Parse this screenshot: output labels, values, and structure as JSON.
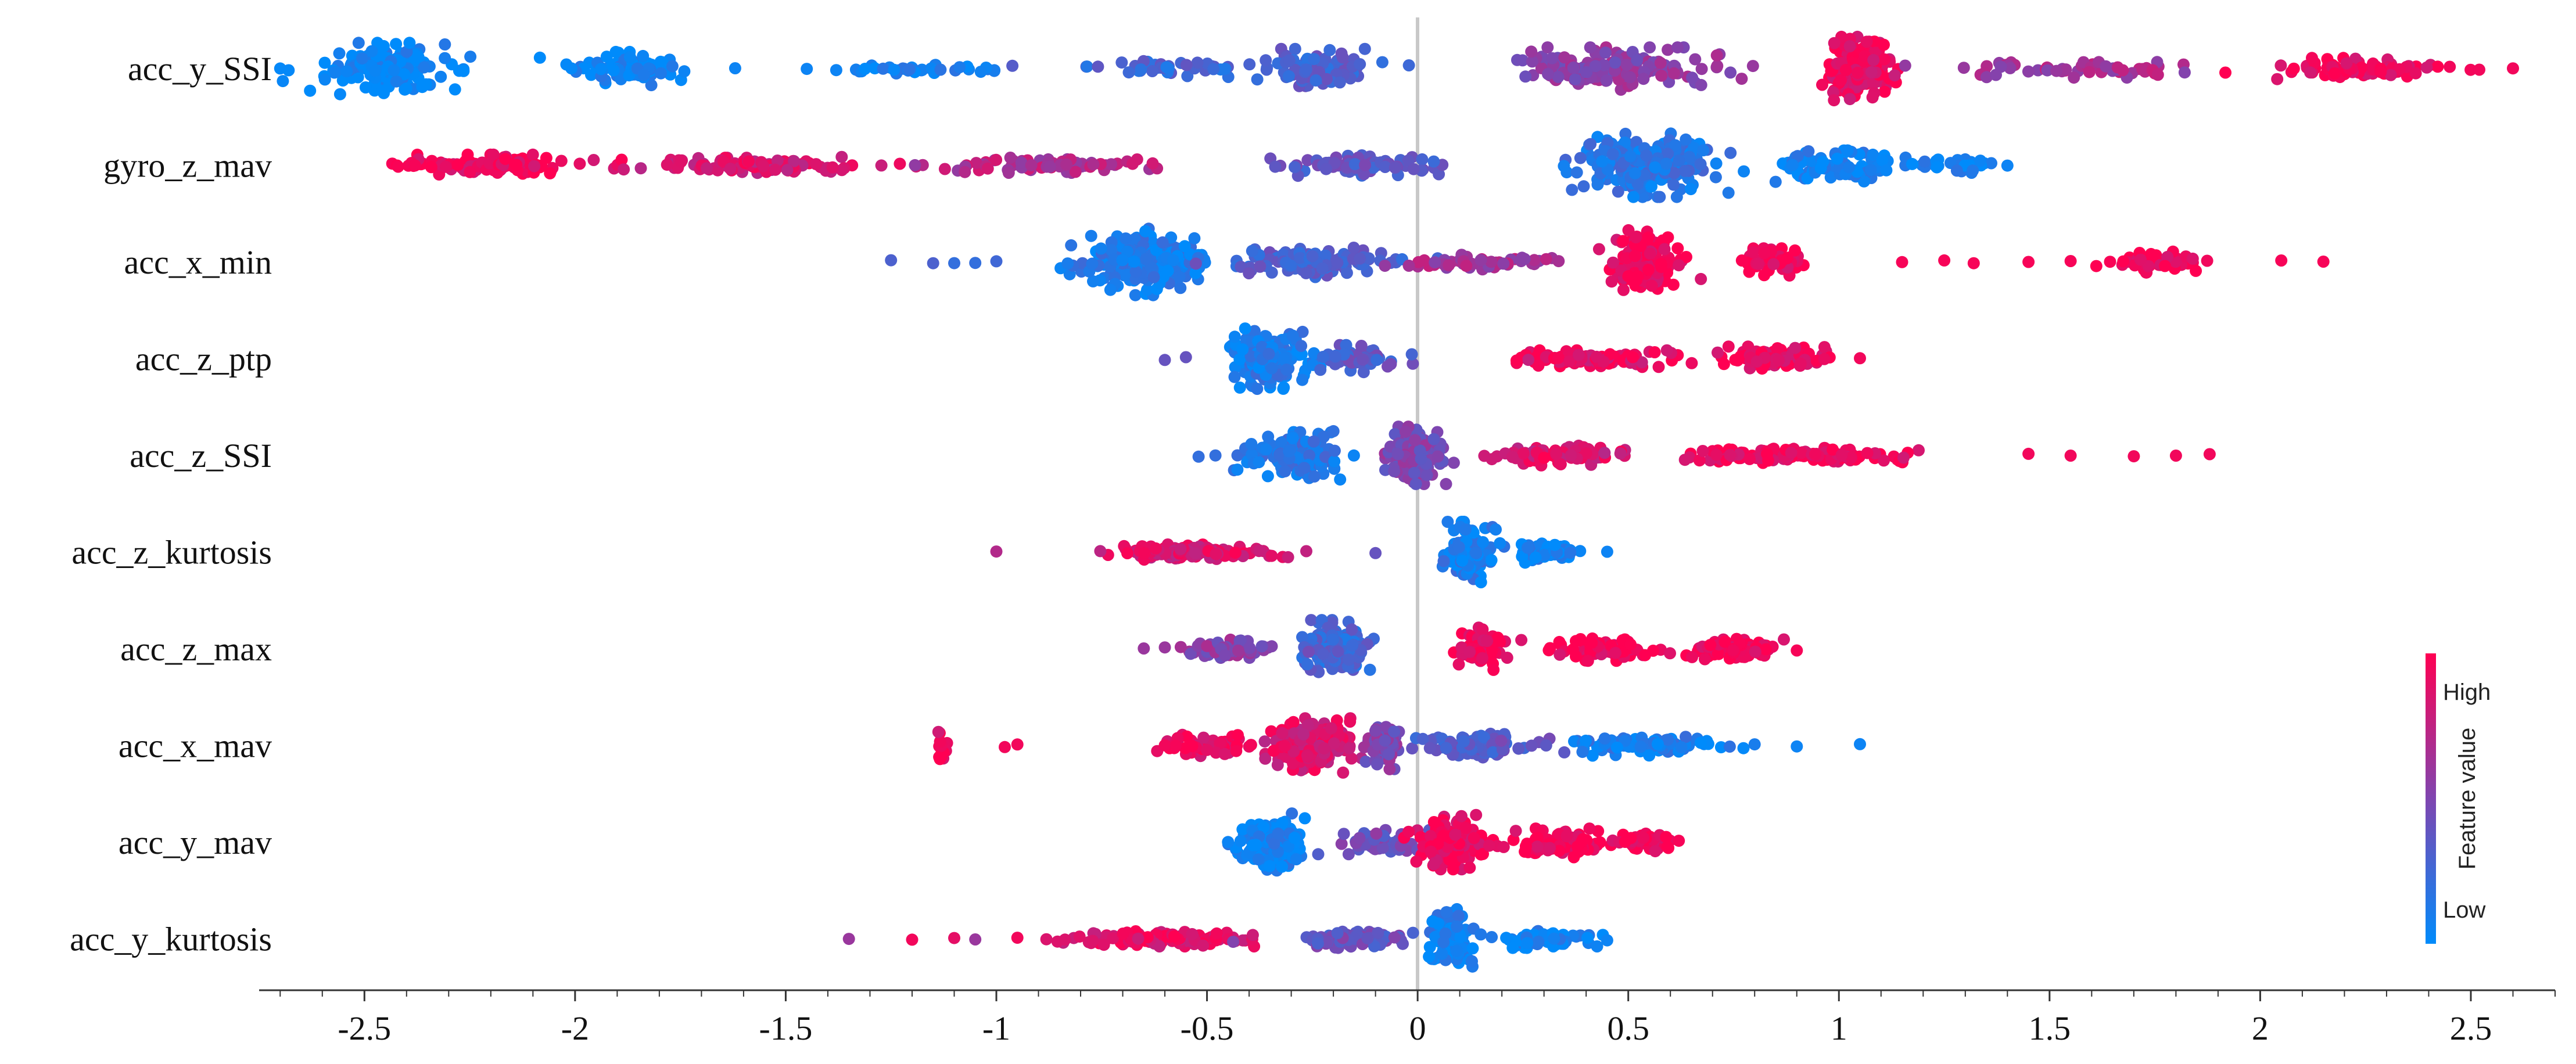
{
  "chart_data": {
    "type": "scatter",
    "subtype": "shap-beeswarm",
    "title": "",
    "xlabel": "",
    "ylabel": "",
    "xlim": [
      -2.75,
      2.7
    ],
    "x_ticks": [
      -2.5,
      -2,
      -1.5,
      -1,
      -0.5,
      0,
      0.5,
      1,
      1.5,
      2,
      2.5
    ],
    "x_tick_labels": [
      "-2.5",
      "-2",
      "-1.5",
      "-1",
      "-0.5",
      "0",
      "0.5",
      "1",
      "1.5",
      "2",
      "2.5"
    ],
    "zero_line": 0,
    "features": [
      {
        "name": "acc_y_SSI",
        "clusters": [
          {
            "x": -2.45,
            "spread": 0.14,
            "n": 170,
            "width": 34,
            "value": 0.02
          },
          {
            "x": -1.88,
            "spread": 0.12,
            "n": 80,
            "width": 22,
            "value": 0.04
          },
          {
            "x": -1.2,
            "spread": 0.2,
            "n": 40,
            "width": 8,
            "value": 0.08
          },
          {
            "x": -0.25,
            "spread": 0.14,
            "n": 100,
            "width": 26,
            "value": 0.3
          },
          {
            "x": -0.6,
            "spread": 0.18,
            "n": 40,
            "width": 10,
            "value": 0.25
          },
          {
            "x": 0.45,
            "spread": 0.25,
            "n": 170,
            "width": 28,
            "value": 0.55
          },
          {
            "x": 1.05,
            "spread": 0.08,
            "n": 160,
            "width": 42,
            "value": 0.92
          },
          {
            "x": 1.55,
            "spread": 0.25,
            "n": 60,
            "width": 12,
            "value": 0.65
          },
          {
            "x": 2.25,
            "spread": 0.2,
            "n": 90,
            "width": 14,
            "value": 0.95
          }
        ],
        "outliers": [
          [
            -2.68,
            0.02
          ],
          [
            -2.7,
            0.02
          ],
          [
            -1.62,
            0.05
          ],
          [
            -1.45,
            0.05
          ],
          [
            -1.38,
            0.05
          ],
          [
            2.45,
            0.95
          ],
          [
            2.52,
            0.95
          ],
          [
            2.6,
            0.95
          ]
        ]
      },
      {
        "name": "gyro_z_mav",
        "clusters": [
          {
            "x": -2.2,
            "spread": 0.18,
            "n": 120,
            "width": 14,
            "value": 0.95
          },
          {
            "x": -1.6,
            "spread": 0.25,
            "n": 100,
            "width": 11,
            "value": 0.85
          },
          {
            "x": -0.9,
            "spread": 0.25,
            "n": 90,
            "width": 10,
            "value": 0.7
          },
          {
            "x": -0.15,
            "spread": 0.2,
            "n": 70,
            "width": 14,
            "value": 0.35
          },
          {
            "x": 0.55,
            "spread": 0.15,
            "n": 250,
            "width": 42,
            "value": 0.15
          },
          {
            "x": 1.0,
            "spread": 0.15,
            "n": 100,
            "width": 22,
            "value": 0.05
          },
          {
            "x": 1.28,
            "spread": 0.08,
            "n": 30,
            "width": 10,
            "value": 0.05
          }
        ],
        "outliers": [
          [
            -2.42,
            0.98
          ],
          [
            -2.38,
            0.97
          ],
          [
            1.4,
            0.05
          ]
        ]
      },
      {
        "name": "acc_x_min",
        "clusters": [
          {
            "x": -0.65,
            "spread": 0.14,
            "n": 200,
            "width": 44,
            "value": 0.1
          },
          {
            "x": -0.25,
            "spread": 0.18,
            "n": 120,
            "width": 20,
            "value": 0.3
          },
          {
            "x": 0.15,
            "spread": 0.15,
            "n": 60,
            "width": 10,
            "value": 0.65
          },
          {
            "x": 0.54,
            "spread": 0.07,
            "n": 150,
            "width": 42,
            "value": 0.95
          },
          {
            "x": 0.85,
            "spread": 0.08,
            "n": 50,
            "width": 18,
            "value": 0.95
          },
          {
            "x": 1.75,
            "spread": 0.1,
            "n": 60,
            "width": 14,
            "value": 0.97
          }
        ],
        "outliers": [
          [
            -1.25,
            0.3
          ],
          [
            -1.15,
            0.3
          ],
          [
            -1.1,
            0.2
          ],
          [
            -1.05,
            0.2
          ],
          [
            -1.0,
            0.25
          ],
          [
            1.15,
            0.97
          ],
          [
            1.25,
            0.97
          ],
          [
            1.32,
            0.97
          ],
          [
            1.45,
            0.97
          ],
          [
            1.55,
            0.97
          ],
          [
            2.05,
            0.97
          ],
          [
            2.15,
            0.97
          ]
        ]
      },
      {
        "name": "acc_z_ptp",
        "clusters": [
          {
            "x": -0.35,
            "spread": 0.08,
            "n": 170,
            "width": 40,
            "value": 0.1
          },
          {
            "x": -0.15,
            "spread": 0.1,
            "n": 50,
            "width": 18,
            "value": 0.35
          },
          {
            "x": 0.4,
            "spread": 0.18,
            "n": 110,
            "width": 11,
            "value": 0.9
          },
          {
            "x": 0.85,
            "spread": 0.1,
            "n": 110,
            "width": 16,
            "value": 0.95
          }
        ],
        "outliers": [
          [
            -0.6,
            0.4
          ],
          [
            -0.55,
            0.4
          ],
          [
            1.05,
            0.95
          ]
        ]
      },
      {
        "name": "acc_z_SSI",
        "clusters": [
          {
            "x": -0.3,
            "spread": 0.12,
            "n": 130,
            "width": 32,
            "value": 0.15
          },
          {
            "x": 0.0,
            "spread": 0.07,
            "n": 140,
            "width": 38,
            "value": 0.5
          },
          {
            "x": 0.35,
            "spread": 0.15,
            "n": 80,
            "width": 14,
            "value": 0.85
          },
          {
            "x": 0.9,
            "spread": 0.25,
            "n": 130,
            "width": 10,
            "value": 0.95
          }
        ],
        "outliers": [
          [
            -0.52,
            0.2
          ],
          [
            -0.48,
            0.2
          ],
          [
            1.45,
            0.95
          ],
          [
            1.55,
            0.95
          ],
          [
            1.7,
            0.95
          ],
          [
            1.8,
            0.95
          ],
          [
            1.88,
            0.95
          ]
        ]
      },
      {
        "name": "acc_z_kurtosis",
        "clusters": [
          {
            "x": -0.55,
            "spread": 0.2,
            "n": 140,
            "width": 10,
            "value": 0.85
          },
          {
            "x": 0.12,
            "spread": 0.06,
            "n": 110,
            "width": 40,
            "value": 0.1
          },
          {
            "x": 0.3,
            "spread": 0.08,
            "n": 70,
            "width": 14,
            "value": 0.05
          }
        ],
        "outliers": [
          [
            -1.0,
            0.7
          ],
          [
            -0.1,
            0.4
          ],
          [
            0.45,
            0.05
          ]
        ]
      },
      {
        "name": "acc_z_max",
        "clusters": [
          {
            "x": -0.2,
            "spread": 0.07,
            "n": 170,
            "width": 38,
            "value": 0.25
          },
          {
            "x": -0.45,
            "spread": 0.1,
            "n": 60,
            "width": 12,
            "value": 0.55
          },
          {
            "x": 0.15,
            "spread": 0.05,
            "n": 80,
            "width": 28,
            "value": 0.97
          },
          {
            "x": 0.45,
            "spread": 0.12,
            "n": 90,
            "width": 16,
            "value": 0.97
          },
          {
            "x": 0.75,
            "spread": 0.1,
            "n": 80,
            "width": 14,
            "value": 0.97
          }
        ],
        "outliers": [
          [
            -0.65,
            0.6
          ],
          [
            -0.6,
            0.6
          ],
          [
            0.9,
            0.97
          ]
        ]
      },
      {
        "name": "acc_x_mav",
        "clusters": [
          {
            "x": -0.25,
            "spread": 0.1,
            "n": 160,
            "width": 36,
            "value": 0.85
          },
          {
            "x": -0.5,
            "spread": 0.1,
            "n": 60,
            "width": 14,
            "value": 0.9
          },
          {
            "x": -0.08,
            "spread": 0.04,
            "n": 60,
            "width": 32,
            "value": 0.5
          },
          {
            "x": 0.15,
            "spread": 0.12,
            "n": 100,
            "width": 18,
            "value": 0.35
          },
          {
            "x": 0.55,
            "spread": 0.15,
            "n": 100,
            "width": 14,
            "value": 0.1
          },
          {
            "x": -1.13,
            "spread": 0.01,
            "n": 14,
            "width": 18,
            "value": 0.95
          }
        ],
        "outliers": [
          [
            -0.98,
            0.95
          ],
          [
            -0.95,
            0.95
          ],
          [
            -0.6,
            0.95
          ],
          [
            0.8,
            0.1
          ],
          [
            0.9,
            0.05
          ],
          [
            1.05,
            0.05
          ]
        ]
      },
      {
        "name": "acc_y_mav",
        "clusters": [
          {
            "x": -0.35,
            "spread": 0.07,
            "n": 140,
            "width": 38,
            "value": 0.05
          },
          {
            "x": -0.1,
            "spread": 0.1,
            "n": 60,
            "width": 16,
            "value": 0.45
          },
          {
            "x": 0.08,
            "spread": 0.08,
            "n": 130,
            "width": 36,
            "value": 0.95
          },
          {
            "x": 0.35,
            "spread": 0.12,
            "n": 110,
            "width": 20,
            "value": 0.97
          },
          {
            "x": 0.55,
            "spread": 0.05,
            "n": 40,
            "width": 12,
            "value": 0.97
          }
        ],
        "outliers": [
          [
            -0.45,
            0.05
          ],
          [
            0.62,
            0.97
          ]
        ]
      },
      {
        "name": "acc_y_kurtosis",
        "clusters": [
          {
            "x": -0.6,
            "spread": 0.22,
            "n": 140,
            "width": 10,
            "value": 0.9
          },
          {
            "x": -0.15,
            "spread": 0.12,
            "n": 80,
            "width": 12,
            "value": 0.4
          },
          {
            "x": 0.08,
            "spread": 0.05,
            "n": 100,
            "width": 40,
            "value": 0.08
          },
          {
            "x": 0.3,
            "spread": 0.1,
            "n": 70,
            "width": 12,
            "value": 0.05
          }
        ],
        "outliers": [
          [
            -1.35,
            0.6
          ],
          [
            -1.2,
            0.95
          ],
          [
            -1.1,
            0.9
          ],
          [
            -1.05,
            0.6
          ],
          [
            -0.95,
            0.95
          ],
          [
            0.45,
            0.05
          ]
        ]
      }
    ],
    "legend": {
      "position": "right",
      "title": "Feature value",
      "high_label": "High",
      "low_label": "Low",
      "high_color": "#ff0052",
      "low_color": "#008bfb"
    }
  }
}
